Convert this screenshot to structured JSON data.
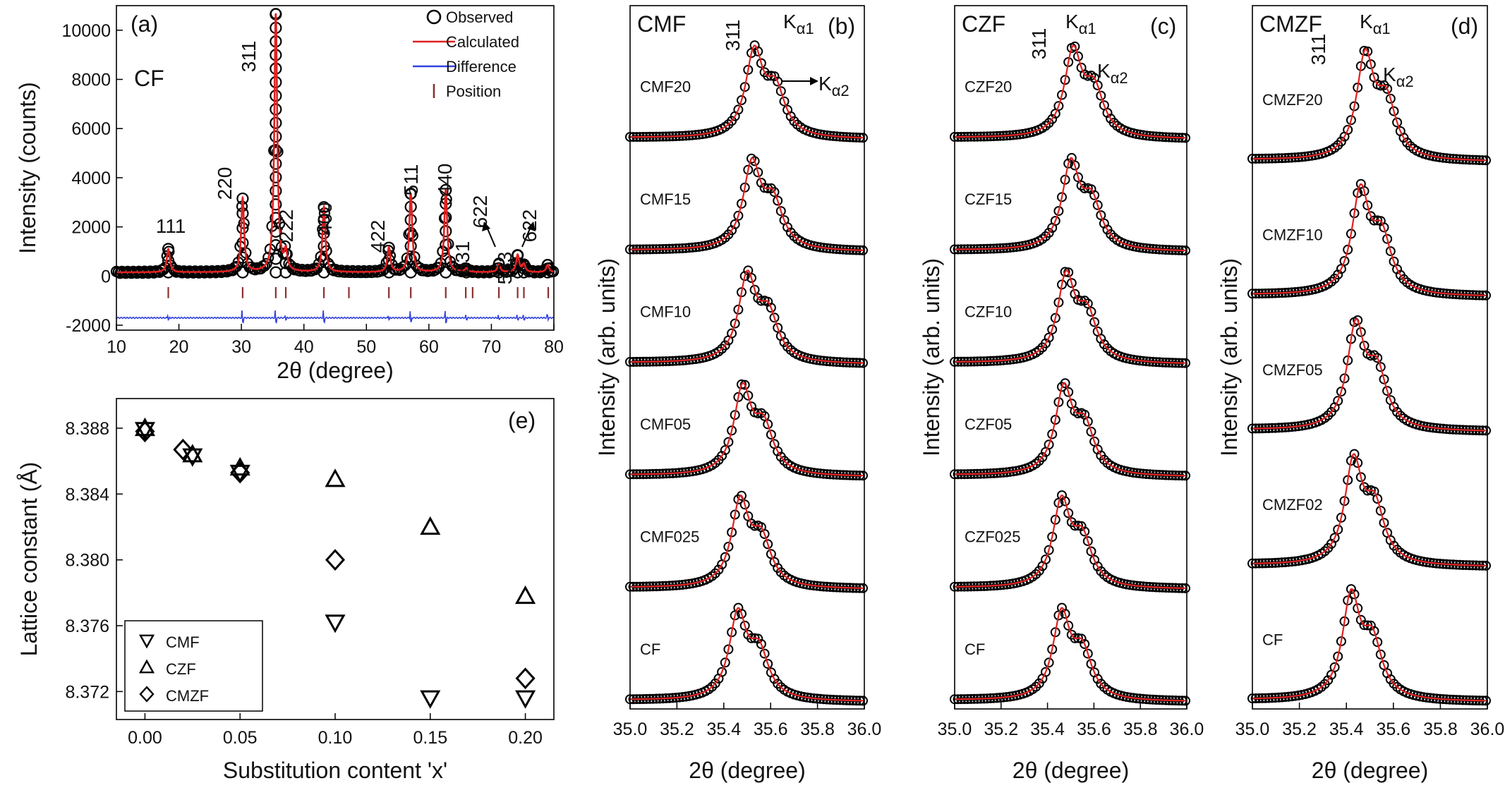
{
  "chart_data": [
    {
      "id": "a",
      "type": "line",
      "panel_label": "(a)",
      "sample_label": "CF",
      "xlabel": "2θ (degree)",
      "ylabel": "Intensity (counts)",
      "xlim": [
        10,
        80
      ],
      "ylim": [
        -2200,
        11000
      ],
      "xticks": [
        10,
        20,
        30,
        40,
        50,
        60,
        70,
        80
      ],
      "yticks": [
        -2000,
        0,
        2000,
        4000,
        6000,
        8000,
        10000
      ],
      "legend": {
        "placement": "top-right",
        "entries": [
          {
            "label": "Observed",
            "color": "#000000",
            "marker": "open-circle"
          },
          {
            "label": "Calculated",
            "color": "#e02020",
            "marker": "line"
          },
          {
            "label": "Difference",
            "color": "#3344dd",
            "marker": "line"
          },
          {
            "label": "Position",
            "color": "#8b3030",
            "marker": "tick"
          }
        ]
      },
      "peaks": [
        {
          "two_theta": 18.3,
          "intensity": 950,
          "label": "111"
        },
        {
          "two_theta": 30.2,
          "intensity": 3000,
          "label": "220"
        },
        {
          "two_theta": 35.5,
          "intensity": 10500,
          "label": "311"
        },
        {
          "two_theta": 37.1,
          "intensity": 750,
          "label": "222"
        },
        {
          "two_theta": 43.2,
          "intensity": 2650,
          "label": "400"
        },
        {
          "two_theta": 53.6,
          "intensity": 1000,
          "label": "422"
        },
        {
          "two_theta": 57.1,
          "intensity": 3200,
          "label": "511"
        },
        {
          "two_theta": 62.7,
          "intensity": 3350,
          "label": "440"
        },
        {
          "two_theta": 66.0,
          "intensity": 150,
          "label": "531"
        },
        {
          "two_theta": 71.2,
          "intensity": 320,
          "label": "622"
        },
        {
          "two_theta": 74.2,
          "intensity": 700,
          "label": "533"
        },
        {
          "two_theta": 75.2,
          "intensity": 320,
          "label": "622"
        },
        {
          "two_theta": 79.0,
          "intensity": 300,
          "label": ""
        }
      ],
      "positions": [
        18.3,
        30.2,
        35.5,
        37.1,
        43.2,
        47.2,
        53.6,
        57.1,
        62.7,
        65.9,
        67.0,
        71.2,
        74.2,
        75.2,
        79.1
      ],
      "difference_offset": -1700
    },
    {
      "id": "b",
      "type": "line",
      "panel_label": "(b)",
      "series_label": "CMF",
      "xlabel": "2θ (degree)",
      "ylabel": "Intensity (arb. units)",
      "xlim": [
        35.0,
        36.0
      ],
      "xticks": [
        "35.0",
        "35.2",
        "35.4",
        "35.6",
        "35.8",
        "36.0"
      ],
      "annotations": [
        "311",
        "Kα1",
        "Kα2"
      ],
      "traces": [
        {
          "name": "CMF20",
          "peak": 35.53
        },
        {
          "name": "CMF15",
          "peak": 35.52
        },
        {
          "name": "CMF10",
          "peak": 35.5
        },
        {
          "name": "CMF05",
          "peak": 35.48
        },
        {
          "name": "CMF025",
          "peak": 35.47
        },
        {
          "name": "CF",
          "peak": 35.46
        }
      ]
    },
    {
      "id": "c",
      "type": "line",
      "panel_label": "(c)",
      "series_label": "CZF",
      "xlabel": "2θ (degree)",
      "ylabel": "Intensity (arb. units)",
      "xlim": [
        35.0,
        36.0
      ],
      "xticks": [
        "35.0",
        "35.2",
        "35.4",
        "35.6",
        "35.8",
        "36.0"
      ],
      "annotations": [
        "311",
        "Kα1",
        "Kα2"
      ],
      "traces": [
        {
          "name": "CZF20",
          "peak": 35.51
        },
        {
          "name": "CZF15",
          "peak": 35.5
        },
        {
          "name": "CZF10",
          "peak": 35.48
        },
        {
          "name": "CZF05",
          "peak": 35.47
        },
        {
          "name": "CZF025",
          "peak": 35.46
        },
        {
          "name": "CF",
          "peak": 35.46
        }
      ]
    },
    {
      "id": "d",
      "type": "line",
      "panel_label": "(d)",
      "series_label": "CMZF",
      "xlabel": "2θ (degree)",
      "ylabel": "Intensity (arb. units)",
      "xlim": [
        35.0,
        36.0
      ],
      "xticks": [
        "35.0",
        "35.2",
        "35.4",
        "35.6",
        "35.8",
        "36.0"
      ],
      "annotations": [
        "311",
        "Kα1",
        "Kα2"
      ],
      "traces": [
        {
          "name": "CMZF20",
          "peak": 35.48
        },
        {
          "name": "CMZF10",
          "peak": 35.46
        },
        {
          "name": "CMZF05",
          "peak": 35.44
        },
        {
          "name": "CMZF02",
          "peak": 35.43
        },
        {
          "name": "CF",
          "peak": 35.42
        }
      ]
    },
    {
      "id": "e",
      "type": "scatter",
      "panel_label": "(e)",
      "xlabel": "Substitution content 'x'",
      "ylabel": "Lattice constant (Å)",
      "xlim": [
        -0.015,
        0.215
      ],
      "ylim": [
        8.3703,
        8.3898
      ],
      "xticks": [
        "0.00",
        "0.05",
        "0.10",
        "0.15",
        "0.20"
      ],
      "yticks": [
        "8.372",
        "8.376",
        "8.380",
        "8.384",
        "8.388"
      ],
      "legend": {
        "placement": "bottom-left"
      },
      "series": [
        {
          "name": "CMF",
          "marker": "triangle-down",
          "x": [
            0.0,
            0.025,
            0.05,
            0.1,
            0.15,
            0.2
          ],
          "y": [
            8.3879,
            8.3863,
            8.3853,
            8.3762,
            8.3716,
            8.3716
          ]
        },
        {
          "name": "CZF",
          "marker": "triangle-up",
          "x": [
            0.0,
            0.025,
            0.05,
            0.1,
            0.15,
            0.2
          ],
          "y": [
            8.388,
            8.3864,
            8.3856,
            8.3849,
            8.382,
            8.3778
          ]
        },
        {
          "name": "CMZF",
          "marker": "diamond",
          "x": [
            0.0,
            0.02,
            0.05,
            0.1,
            0.2
          ],
          "y": [
            8.3878,
            8.3867,
            8.3853,
            8.38,
            8.3728
          ]
        }
      ]
    }
  ]
}
